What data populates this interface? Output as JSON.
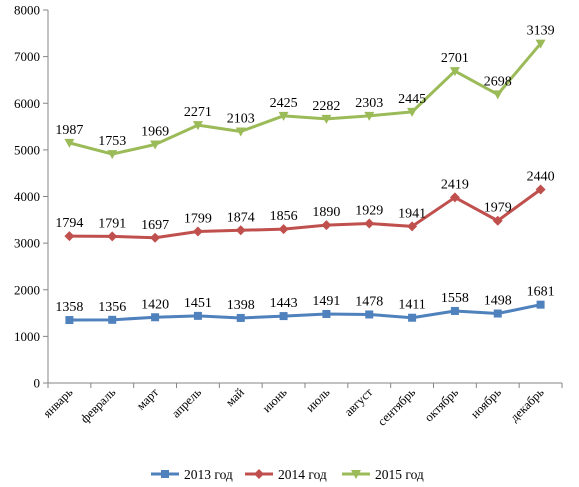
{
  "chart_data": {
    "type": "line",
    "title": "",
    "xlabel": "",
    "ylabel": "",
    "categories": [
      "январь",
      "февраль",
      "март",
      "апрель",
      "май",
      "июнь",
      "июль",
      "август",
      "сентябрь",
      "октябрь",
      "ноябрь",
      "декабрь"
    ],
    "ylim": [
      0,
      8000
    ],
    "yticks": [
      0,
      1000,
      2000,
      3000,
      4000,
      5000,
      6000,
      7000,
      8000
    ],
    "grid": false,
    "legend_position": "bottom",
    "series": [
      {
        "name": "2013 год",
        "color": "#4f81bd",
        "marker": "square",
        "values": [
          1350,
          1355,
          1410,
          1440,
          1395,
          1435,
          1480,
          1470,
          1400,
          1545,
          1490,
          1680
        ],
        "labels": [
          "1358",
          "1356",
          "1420",
          "1451",
          "1398",
          "1443",
          "1491",
          "1478",
          "1411",
          "1558",
          "1498",
          "1681"
        ]
      },
      {
        "name": "2014 год",
        "color": "#c0504d",
        "marker": "diamond",
        "values": [
          3150,
          3145,
          3115,
          3250,
          3275,
          3300,
          3385,
          3420,
          3360,
          3980,
          3480,
          4150
        ],
        "labels": [
          "1794",
          "1791",
          "1697",
          "1799",
          "1874",
          "1856",
          "1890",
          "1929",
          "1941",
          "2419",
          "1979",
          "2440"
        ]
      },
      {
        "name": "2015 год",
        "color": "#9bbb59",
        "marker": "triangle-down",
        "values": [
          5150,
          4910,
          5115,
          5530,
          5395,
          5730,
          5665,
          5730,
          5815,
          6690,
          6190,
          7280
        ],
        "labels": [
          "1987",
          "1753",
          "1969",
          "2271",
          "2103",
          "2425",
          "2282",
          "2303",
          "2445",
          "2701",
          "2698",
          "3139"
        ]
      }
    ]
  }
}
